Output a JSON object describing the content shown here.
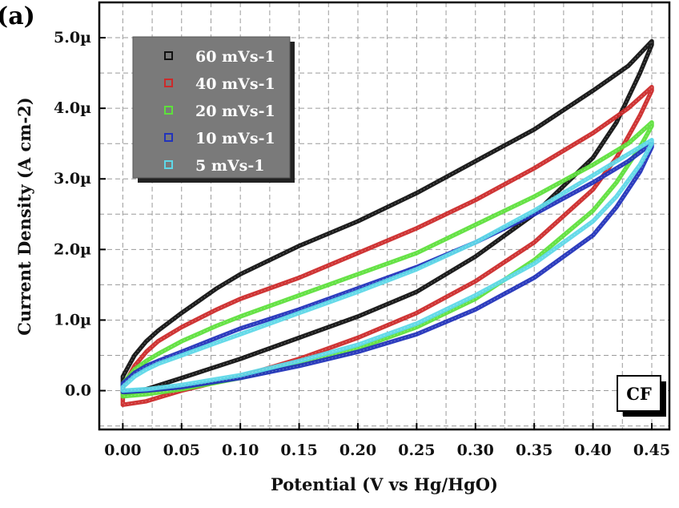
{
  "panel_label": "(a)",
  "chart_data": {
    "type": "line",
    "title": "",
    "xlabel": "Potential (V vs Hg/HgO)",
    "ylabel": "Current Density (A cm-2)",
    "xlim": [
      -0.02,
      0.465
    ],
    "ylim": [
      -0.55,
      5.5
    ],
    "xticks": [
      "0.00",
      "0.05",
      "0.10",
      "0.15",
      "0.20",
      "0.25",
      "0.30",
      "0.35",
      "0.40",
      "0.45"
    ],
    "xtick_values": [
      0,
      0.05,
      0.1,
      0.15,
      0.2,
      0.25,
      0.3,
      0.35,
      0.4,
      0.45
    ],
    "yticks": [
      "0.0",
      "1.0µ",
      "2.0µ",
      "3.0µ",
      "4.0µ",
      "5.0µ"
    ],
    "ytick_values": [
      0,
      1,
      2,
      3,
      4,
      5
    ],
    "grid": true,
    "legend_position": "top-left",
    "annotation": "CF",
    "series": [
      {
        "name": "60 mVs-1",
        "color": "#111111",
        "x": [
          0,
          0.01,
          0.02,
          0.03,
          0.05,
          0.08,
          0.1,
          0.15,
          0.2,
          0.25,
          0.3,
          0.35,
          0.4,
          0.43,
          0.45,
          0.45,
          0.44,
          0.42,
          0.4,
          0.35,
          0.3,
          0.25,
          0.2,
          0.15,
          0.1,
          0.05,
          0.02,
          0,
          0
        ],
        "y": [
          0.2,
          0.5,
          0.7,
          0.85,
          1.1,
          1.45,
          1.65,
          2.05,
          2.4,
          2.8,
          3.25,
          3.7,
          4.25,
          4.6,
          4.95,
          4.9,
          4.5,
          3.8,
          3.3,
          2.5,
          1.9,
          1.4,
          1.05,
          0.75,
          0.45,
          0.18,
          0.02,
          -0.05,
          0.2
        ]
      },
      {
        "name": "40 mVs-1",
        "color": "#cc2a2a",
        "x": [
          0,
          0.01,
          0.02,
          0.03,
          0.05,
          0.08,
          0.1,
          0.15,
          0.2,
          0.25,
          0.3,
          0.35,
          0.4,
          0.43,
          0.45,
          0.45,
          0.44,
          0.42,
          0.4,
          0.35,
          0.3,
          0.25,
          0.2,
          0.15,
          0.1,
          0.05,
          0.02,
          0,
          0
        ],
        "y": [
          0.05,
          0.35,
          0.55,
          0.7,
          0.9,
          1.15,
          1.3,
          1.6,
          1.95,
          2.3,
          2.7,
          3.15,
          3.65,
          4.0,
          4.3,
          4.25,
          3.9,
          3.3,
          2.85,
          2.1,
          1.55,
          1.1,
          0.75,
          0.45,
          0.2,
          0.0,
          -0.15,
          -0.2,
          0.05
        ]
      },
      {
        "name": "20 mVs-1",
        "color": "#5ee03c",
        "x": [
          0,
          0.01,
          0.02,
          0.03,
          0.05,
          0.08,
          0.1,
          0.15,
          0.2,
          0.25,
          0.3,
          0.35,
          0.4,
          0.43,
          0.45,
          0.45,
          0.44,
          0.42,
          0.4,
          0.35,
          0.3,
          0.25,
          0.2,
          0.15,
          0.1,
          0.05,
          0.02,
          0,
          0
        ],
        "y": [
          0.1,
          0.3,
          0.42,
          0.52,
          0.7,
          0.92,
          1.05,
          1.35,
          1.65,
          1.95,
          2.35,
          2.75,
          3.2,
          3.5,
          3.8,
          3.75,
          3.45,
          2.95,
          2.55,
          1.85,
          1.3,
          0.9,
          0.6,
          0.38,
          0.18,
          0.02,
          -0.05,
          -0.08,
          0.1
        ]
      },
      {
        "name": "10 mVs-1",
        "color": "#2233bb",
        "x": [
          0,
          0.01,
          0.02,
          0.03,
          0.05,
          0.08,
          0.1,
          0.15,
          0.2,
          0.25,
          0.3,
          0.35,
          0.4,
          0.43,
          0.45,
          0.45,
          0.44,
          0.42,
          0.4,
          0.35,
          0.3,
          0.25,
          0.2,
          0.15,
          0.1,
          0.05,
          0.02,
          0,
          0
        ],
        "y": [
          0.1,
          0.25,
          0.35,
          0.42,
          0.55,
          0.75,
          0.88,
          1.15,
          1.45,
          1.75,
          2.1,
          2.5,
          2.95,
          3.25,
          3.5,
          3.45,
          3.1,
          2.6,
          2.2,
          1.6,
          1.15,
          0.8,
          0.55,
          0.35,
          0.18,
          0.05,
          0.0,
          -0.02,
          0.1
        ]
      },
      {
        "name": "5 mVs-1",
        "color": "#5ed8e8",
        "x": [
          0,
          0.01,
          0.02,
          0.03,
          0.05,
          0.08,
          0.1,
          0.15,
          0.2,
          0.25,
          0.3,
          0.35,
          0.4,
          0.43,
          0.45,
          0.45,
          0.44,
          0.42,
          0.4,
          0.35,
          0.3,
          0.25,
          0.2,
          0.15,
          0.1,
          0.05,
          0.02,
          0,
          0
        ],
        "y": [
          0.05,
          0.2,
          0.3,
          0.38,
          0.5,
          0.68,
          0.8,
          1.1,
          1.4,
          1.72,
          2.1,
          2.55,
          3.05,
          3.35,
          3.55,
          3.5,
          3.2,
          2.75,
          2.4,
          1.8,
          1.35,
          0.95,
          0.65,
          0.42,
          0.22,
          0.08,
          0.02,
          0.0,
          0.05
        ]
      }
    ]
  }
}
